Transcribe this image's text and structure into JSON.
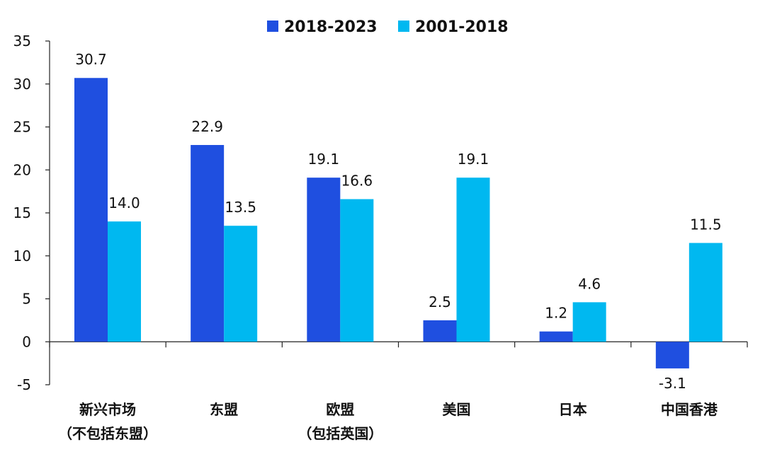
{
  "chart_data": {
    "type": "bar",
    "categories": [
      [
        "新兴市场",
        "（不包括东盟）"
      ],
      [
        "东盟"
      ],
      [
        "欧盟",
        "（包括英国）"
      ],
      [
        "美国"
      ],
      [
        "日本"
      ],
      [
        "中国香港"
      ]
    ],
    "series": [
      {
        "name": "2018-2023",
        "color": "#1F4FE0",
        "values": [
          30.7,
          22.9,
          19.1,
          2.5,
          1.2,
          -3.1
        ]
      },
      {
        "name": "2001-2018",
        "color": "#00B8F0",
        "values": [
          14.0,
          13.5,
          16.6,
          19.1,
          4.6,
          11.5
        ]
      }
    ],
    "value_labels": [
      [
        "30.7",
        "22.9",
        "19.1",
        "2.5",
        "1.2",
        "-3.1"
      ],
      [
        "14.0",
        "13.5",
        "16.6",
        "19.1",
        "4.6",
        "11.5"
      ]
    ],
    "ylim": [
      -5,
      35
    ],
    "yticks": [
      -5,
      0,
      5,
      10,
      15,
      20,
      25,
      30,
      35
    ],
    "grid": false,
    "legend_position": "top-center",
    "title": "",
    "xlabel": "",
    "ylabel": ""
  }
}
